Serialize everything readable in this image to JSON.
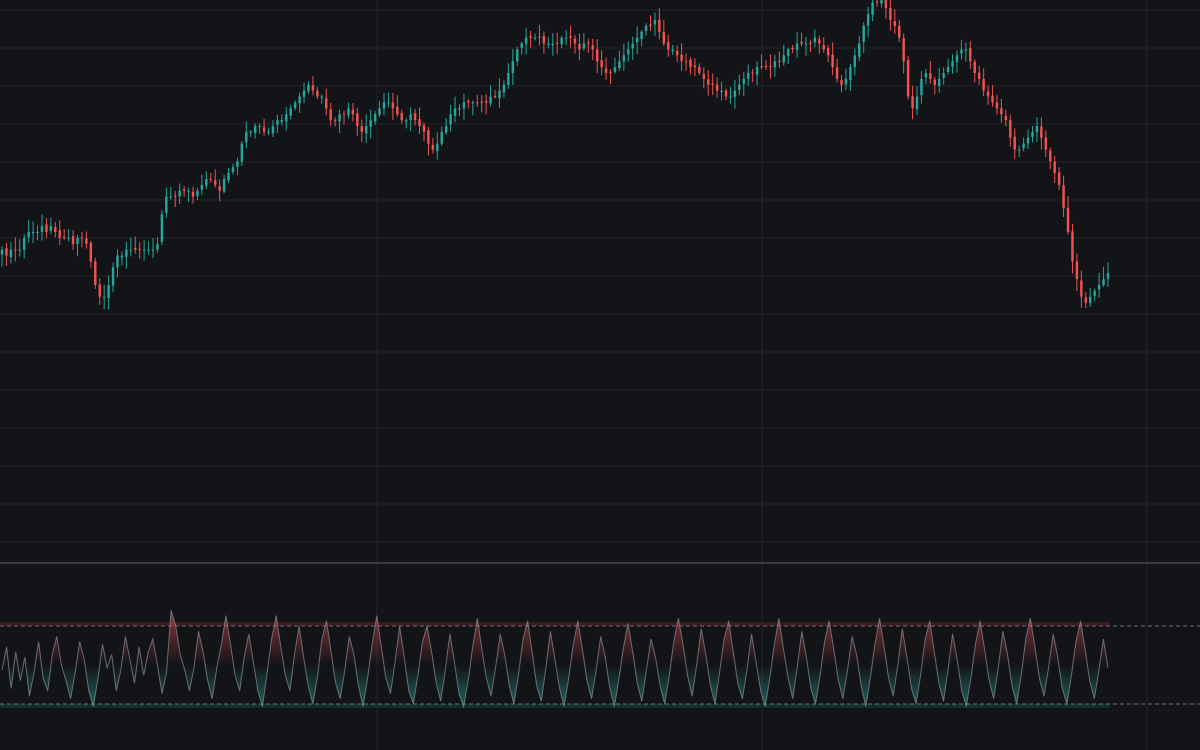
{
  "colors": {
    "background": "#131418",
    "grid": "#22242a",
    "separator": "#3a3c42",
    "up": "#26a69a",
    "down": "#ef5350",
    "overbought_band": "#3a1c20",
    "oversold_band": "#14302c",
    "ref_line": "#6b6e75"
  },
  "chart_data": [
    {
      "type": "candlestick",
      "title": "",
      "xlabel": "",
      "ylabel": "",
      "ylim": [
        10,
        100
      ],
      "grid": true,
      "series": [
        {
          "values": [
            61,
            60,
            61,
            61,
            61,
            63,
            64,
            64,
            64,
            65,
            64,
            65,
            64,
            63,
            63,
            63,
            62,
            63,
            63,
            62,
            59,
            55,
            53,
            53,
            55,
            58,
            60,
            60,
            61,
            61,
            61,
            61,
            61,
            61,
            61,
            62,
            67,
            70,
            70,
            70,
            71,
            71,
            71,
            70,
            71,
            72,
            73,
            73,
            72,
            71,
            73,
            74,
            75,
            76,
            79,
            81,
            81,
            82,
            82,
            81,
            81,
            82,
            83,
            83,
            84,
            85,
            86,
            87,
            88,
            89,
            88,
            87,
            87,
            85,
            83,
            83,
            84,
            84,
            85,
            84,
            82,
            81,
            82,
            83,
            84,
            85,
            86,
            86,
            85,
            84,
            83,
            83,
            84,
            83,
            82,
            81,
            79,
            78,
            79,
            81,
            82,
            84,
            85,
            85,
            86,
            86,
            86,
            86,
            86,
            86,
            87,
            87,
            88,
            89,
            91,
            93,
            95,
            96,
            97,
            97,
            97,
            97,
            96,
            96,
            96,
            96,
            97,
            97,
            97,
            96,
            95,
            96,
            96,
            95,
            93,
            92,
            91,
            91,
            92,
            93,
            94,
            95,
            96,
            97,
            98,
            99,
            99,
            100,
            98,
            96,
            95,
            95,
            94,
            93,
            93,
            92,
            92,
            91,
            90,
            89,
            89,
            88,
            88,
            87,
            87,
            88,
            89,
            90,
            91,
            91,
            92,
            92,
            92,
            92,
            93,
            93,
            94,
            95,
            95,
            96,
            96,
            96,
            96,
            97,
            96,
            95,
            94,
            92,
            90,
            89,
            90,
            92,
            94,
            96,
            99,
            101,
            103,
            103,
            104,
            102,
            100,
            99,
            97,
            93,
            87,
            85,
            87,
            90,
            91,
            90,
            89,
            90,
            91,
            92,
            93,
            94,
            95,
            95,
            93,
            91,
            90,
            88,
            87,
            86,
            85,
            84,
            83,
            80,
            78,
            78,
            79,
            80,
            81,
            82,
            80,
            78,
            76,
            74,
            72,
            68,
            64,
            59,
            56,
            53,
            52,
            53,
            54,
            55,
            56,
            57
          ]
        }
      ]
    },
    {
      "type": "area",
      "title": "",
      "ylabel": "",
      "ylim": [
        0,
        100
      ],
      "reference_lines": [
        80,
        20
      ],
      "bands": [
        [
          80,
          83
        ],
        [
          17,
          20
        ]
      ],
      "series": [
        {
          "values": [
            46,
            64,
            32,
            60,
            38,
            56,
            26,
            44,
            68,
            40,
            30,
            58,
            72,
            50,
            38,
            24,
            44,
            68,
            54,
            30,
            18,
            40,
            66,
            48,
            58,
            30,
            46,
            72,
            54,
            36,
            64,
            42,
            60,
            70,
            50,
            28,
            44,
            92,
            80,
            58,
            46,
            30,
            48,
            76,
            60,
            38,
            24,
            48,
            66,
            88,
            66,
            42,
            30,
            56,
            74,
            52,
            30,
            18,
            44,
            70,
            88,
            64,
            42,
            30,
            58,
            80,
            56,
            34,
            20,
            40,
            70,
            84,
            60,
            36,
            24,
            46,
            72,
            58,
            34,
            18,
            40,
            66,
            88,
            64,
            40,
            28,
            52,
            80,
            56,
            30,
            20,
            42,
            68,
            80,
            60,
            36,
            22,
            46,
            74,
            52,
            28,
            18,
            38,
            64,
            86,
            62,
            40,
            26,
            48,
            74,
            58,
            34,
            20,
            42,
            70,
            84,
            60,
            34,
            22,
            48,
            76,
            54,
            32,
            18,
            40,
            66,
            84,
            62,
            38,
            24,
            46,
            72,
            56,
            32,
            18,
            40,
            64,
            82,
            60,
            36,
            22,
            46,
            70,
            56,
            34,
            20,
            42,
            68,
            86,
            66,
            42,
            26,
            50,
            78,
            58,
            34,
            20,
            44,
            70,
            84,
            60,
            36,
            24,
            46,
            74,
            52,
            30,
            18,
            40,
            66,
            86,
            62,
            40,
            24,
            48,
            76,
            56,
            32,
            20,
            42,
            68,
            84,
            62,
            38,
            24,
            46,
            72,
            58,
            34,
            18,
            40,
            66,
            86,
            64,
            40,
            26,
            50,
            78,
            56,
            32,
            20,
            42,
            70,
            84,
            60,
            36,
            22,
            46,
            74,
            54,
            30,
            18,
            40,
            66,
            84,
            62,
            38,
            24,
            48,
            76,
            58,
            34,
            20,
            42,
            70,
            86,
            64,
            40,
            26,
            48,
            74,
            56,
            32,
            20,
            42,
            68,
            84,
            62,
            38,
            24,
            46,
            70,
            48
          ]
        }
      ]
    }
  ]
}
